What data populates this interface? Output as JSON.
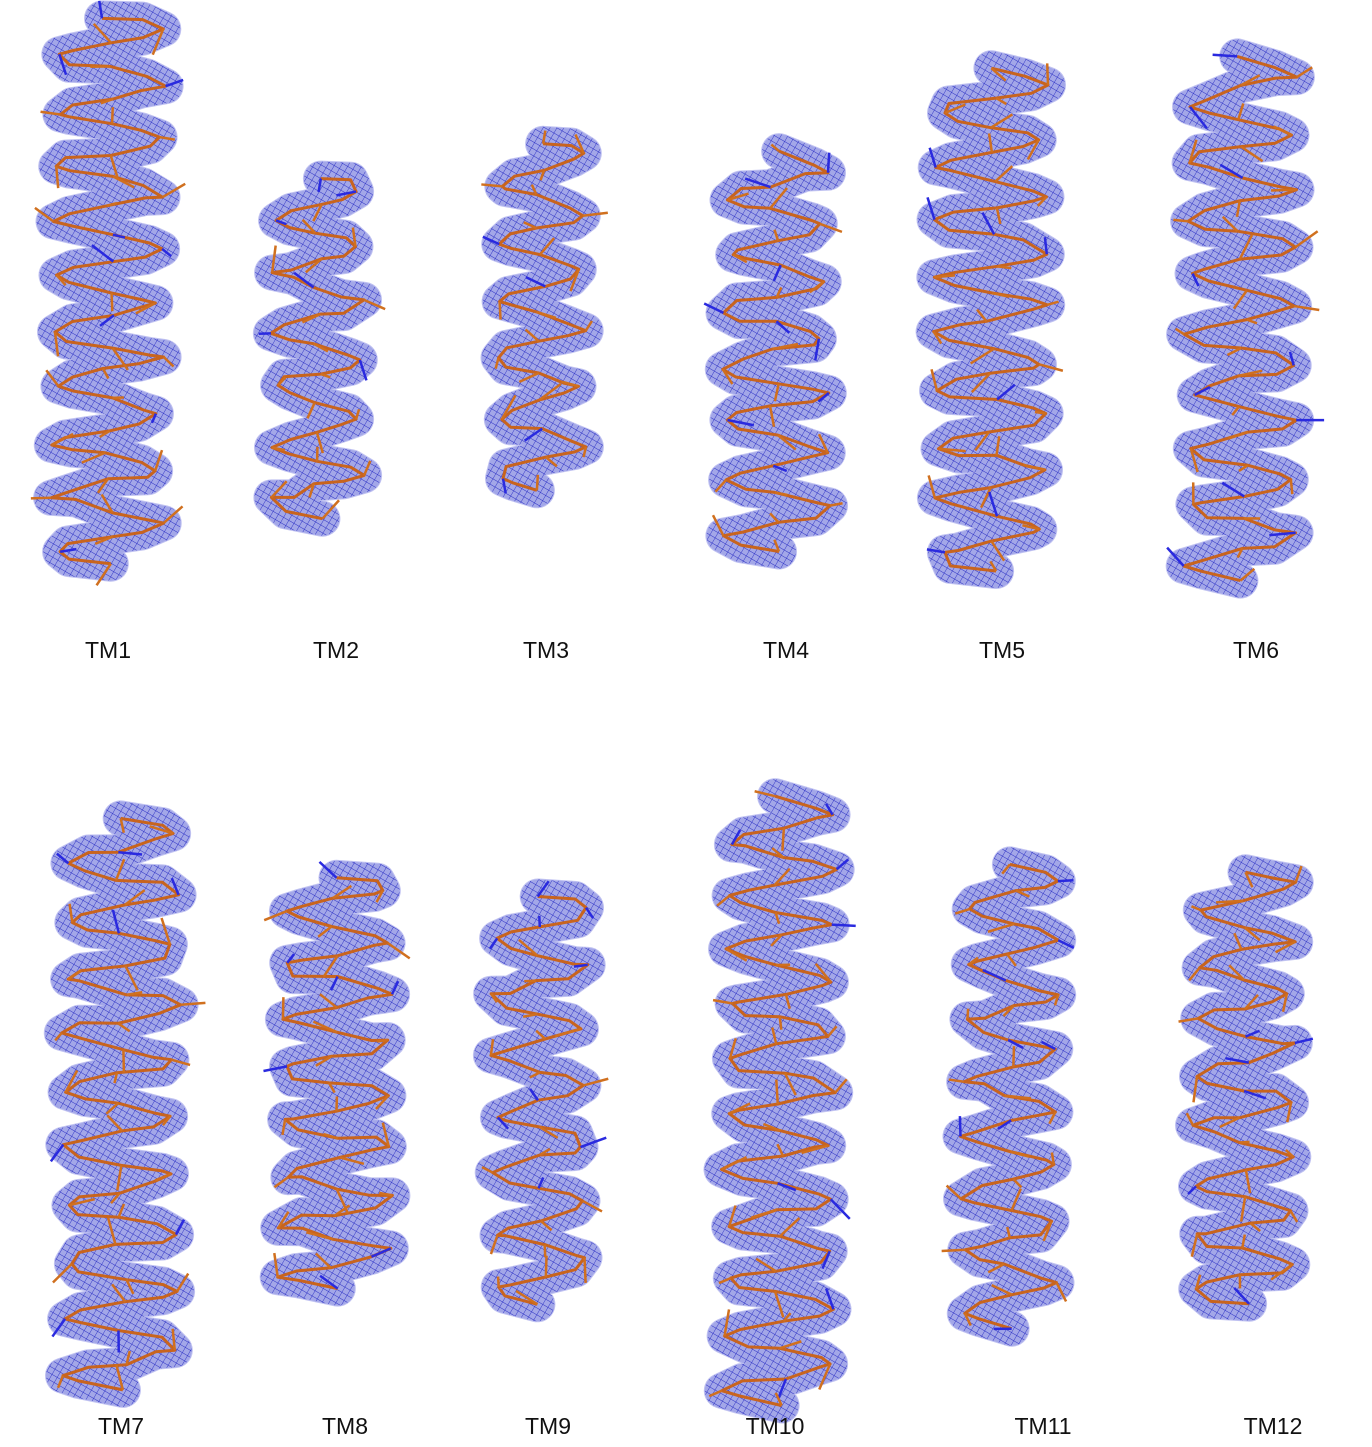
{
  "panels": [
    {
      "label": "TM1"
    },
    {
      "label": "TM2"
    },
    {
      "label": "TM3"
    },
    {
      "label": "TM4"
    },
    {
      "label": "TM5"
    },
    {
      "label": "TM6"
    },
    {
      "label": "TM7"
    },
    {
      "label": "TM8"
    },
    {
      "label": "TM9"
    },
    {
      "label": "TM10"
    },
    {
      "label": "TM11"
    },
    {
      "label": "TM12"
    }
  ]
}
